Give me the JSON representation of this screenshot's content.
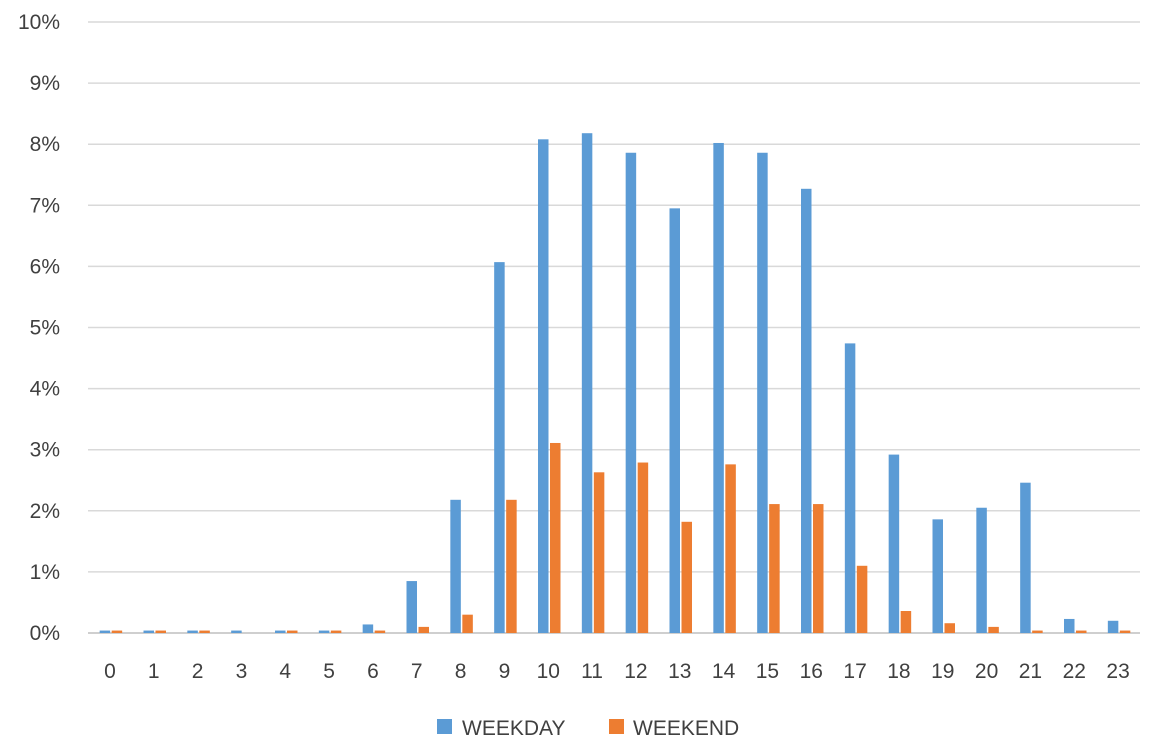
{
  "chart_data": {
    "type": "bar",
    "categories": [
      "0",
      "1",
      "2",
      "3",
      "4",
      "5",
      "6",
      "7",
      "8",
      "9",
      "10",
      "11",
      "12",
      "13",
      "14",
      "15",
      "16",
      "17",
      "18",
      "19",
      "20",
      "21",
      "22",
      "23"
    ],
    "series": [
      {
        "name": "WEEKDAY",
        "color": "#5b9bd5",
        "values": [
          0.04,
          0.04,
          0.04,
          0.04,
          0.04,
          0.04,
          0.14,
          0.85,
          2.18,
          6.07,
          8.08,
          8.18,
          7.86,
          6.95,
          8.02,
          7.86,
          7.27,
          4.74,
          2.92,
          1.86,
          2.05,
          2.46,
          0.23,
          0.2
        ]
      },
      {
        "name": "WEEKEND",
        "color": "#ed7d31",
        "values": [
          0.04,
          0.04,
          0.04,
          0,
          0.04,
          0.04,
          0.04,
          0.1,
          0.3,
          2.18,
          3.11,
          2.63,
          2.79,
          1.82,
          2.76,
          2.11,
          2.11,
          1.1,
          0.36,
          0.16,
          0.1,
          0.04,
          0.04,
          0.04
        ]
      }
    ],
    "ylim": [
      0,
      10
    ],
    "y_ticks": [
      "0%",
      "1%",
      "2%",
      "3%",
      "4%",
      "5%",
      "6%",
      "7%",
      "8%",
      "9%",
      "10%"
    ],
    "grid": true,
    "legend_position": "bottom"
  }
}
